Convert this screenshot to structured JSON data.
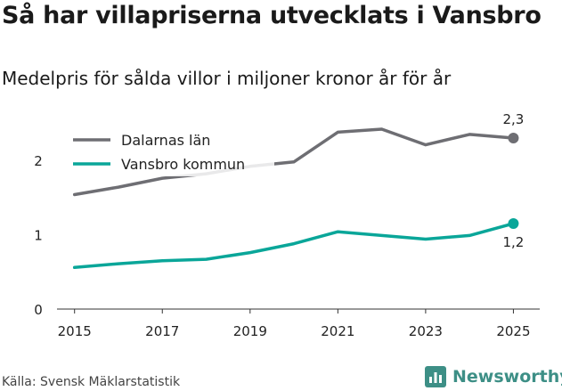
{
  "chart_data": {
    "type": "line",
    "title": "Så har villapriserna utvecklats i Vansbro",
    "subtitle": "Medelpris för sålda villor i miljoner kronor år för år",
    "x": [
      2015,
      2016,
      2017,
      2018,
      2019,
      2020,
      2021,
      2022,
      2023,
      2024,
      2025
    ],
    "series": [
      {
        "name": "Dalarnas län",
        "color": "#6e6e73",
        "values": [
          1.54,
          1.64,
          1.76,
          1.82,
          1.92,
          1.98,
          2.38,
          2.42,
          2.21,
          2.35,
          2.3
        ],
        "end_label": "2,3"
      },
      {
        "name": "Vansbro kommun",
        "color": "#0aa699",
        "values": [
          0.56,
          0.61,
          0.65,
          0.67,
          0.76,
          0.88,
          1.04,
          0.99,
          0.94,
          0.99,
          1.15
        ],
        "end_label": "1,2"
      }
    ],
    "xticks": [
      "2015",
      "2017",
      "2019",
      "2021",
      "2023",
      "2025"
    ],
    "yticks": [
      "0",
      "1",
      "2"
    ],
    "ylim": [
      0,
      2.6
    ],
    "xlim": [
      2014.6,
      2025.6
    ],
    "xlabel": "",
    "ylabel": "",
    "grid": false,
    "legend_position": "top-left"
  },
  "footer": {
    "source": "Källa: Svensk Mäklarstatistik",
    "brand": "Newsworthy",
    "brand_icon": "bar-chart-icon",
    "brand_color": "#3d8f86"
  }
}
